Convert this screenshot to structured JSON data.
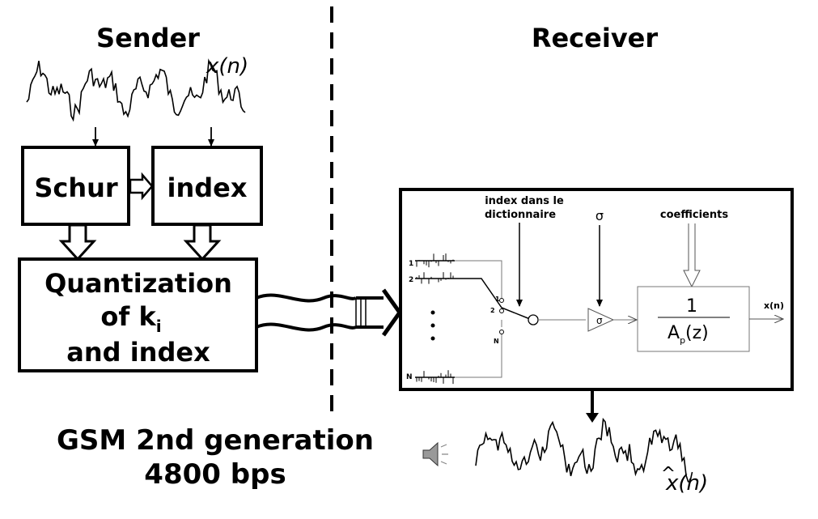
{
  "sender": {
    "title": "Sender",
    "signal_label": "x(n)",
    "schur_label": "Schur",
    "index_label": "index",
    "quant_line1": "Quantization",
    "quant_line2_prefix": "of k",
    "quant_line2_sub": "i",
    "quant_line3": "and index"
  },
  "receiver": {
    "title": "Receiver",
    "index_dict_line1": "index dans le",
    "index_dict_line2": "dictionnaire",
    "sigma": "σ",
    "coefficients": "coefficients",
    "filter_num": "1",
    "filter_den_A": "A",
    "filter_den_sub": "p",
    "filter_den_z": "(z)",
    "output_label": "x(n)",
    "codebook_labels": [
      "1",
      "2",
      "N"
    ],
    "switch_labels": [
      "1",
      "2",
      "N"
    ],
    "amp_symbol": "σ",
    "signal_label": "x(n)",
    "hat": "^"
  },
  "footer": {
    "line1": "GSM 2nd generation",
    "line2": "4800 bps"
  },
  "icons": [
    "speaker-icon"
  ]
}
